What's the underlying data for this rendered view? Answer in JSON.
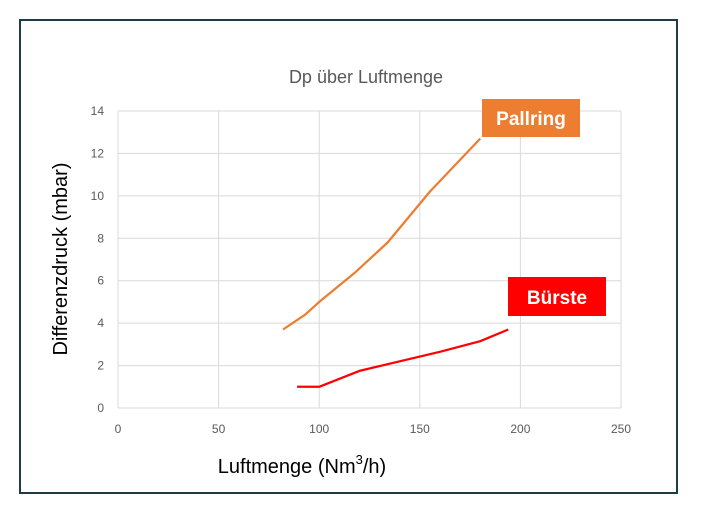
{
  "chart_data": {
    "type": "line",
    "title": "Dp über Luftmenge",
    "xlabel_main": "Luftmenge (Nm",
    "xlabel_sup": "3",
    "xlabel_end": "/h)",
    "ylabel": "Differenzdruck (mbar)",
    "xlim": [
      0,
      250
    ],
    "ylim": [
      0,
      14
    ],
    "xticks": [
      0,
      50,
      100,
      150,
      200,
      250
    ],
    "yticks": [
      0,
      2,
      4,
      6,
      8,
      10,
      12,
      14
    ],
    "grid": true,
    "series": [
      {
        "name": "Pallring",
        "color": "#ed7d31",
        "label_bg": "#ed7d31",
        "x": [
          82,
          93,
          100,
          118,
          134,
          155,
          180
        ],
        "y": [
          3.7,
          4.4,
          5.0,
          6.4,
          7.8,
          10.2,
          12.7
        ]
      },
      {
        "name": "Bürste",
        "color": "#ff0000",
        "label_bg": "#ff0000",
        "x": [
          89,
          100,
          120,
          140,
          160,
          180,
          194
        ],
        "y": [
          1.0,
          1.0,
          1.75,
          2.2,
          2.65,
          3.15,
          3.7
        ]
      }
    ]
  }
}
